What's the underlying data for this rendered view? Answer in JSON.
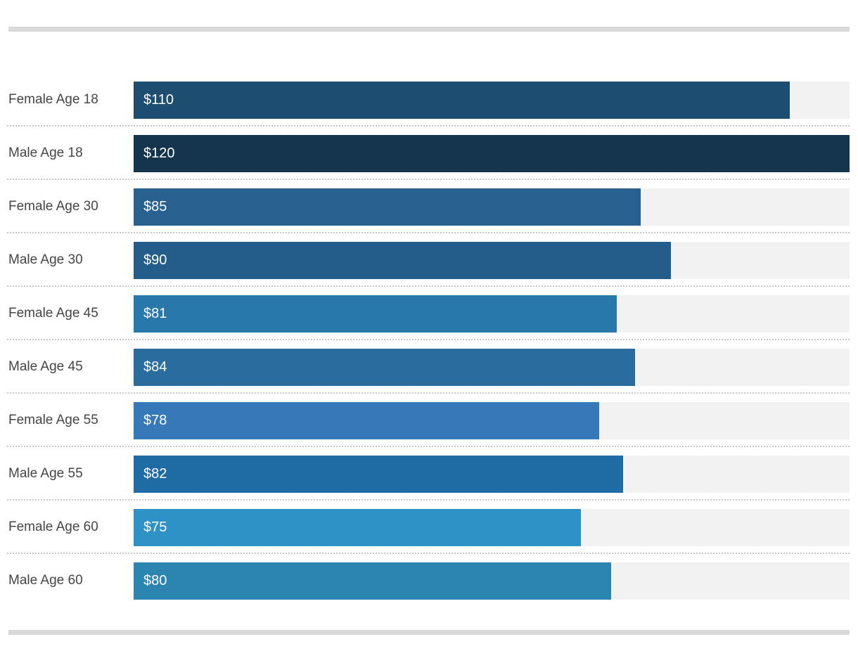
{
  "chart_data": {
    "type": "bar",
    "orientation": "horizontal",
    "title": "",
    "xlabel": "",
    "ylabel": "",
    "xlim": [
      0,
      120
    ],
    "grid": false,
    "legend": false,
    "currency_prefix": "$",
    "track_color": "#f2f2f2",
    "divider_color": "#d9d9d9",
    "categories": [
      "Female Age 18",
      "Male Age 18",
      "Female Age 30",
      "Male Age 30",
      "Female Age 45",
      "Male Age 45",
      "Female Age 55",
      "Male Age 55",
      "Female Age 60",
      "Male Age 60"
    ],
    "values": [
      110,
      120,
      85,
      90,
      81,
      84,
      78,
      82,
      75,
      80
    ],
    "rows": [
      {
        "label": "Female Age 18",
        "value": 110,
        "display": "$110",
        "color": "#1E4D72"
      },
      {
        "label": "Male Age 18",
        "value": 120,
        "display": "$120",
        "color": "#14344E"
      },
      {
        "label": "Female Age 30",
        "value": 85,
        "display": "$85",
        "color": "#28618F"
      },
      {
        "label": "Male Age 30",
        "value": 90,
        "display": "$90",
        "color": "#235C88"
      },
      {
        "label": "Female Age 45",
        "value": 81,
        "display": "$81",
        "color": "#2878A9"
      },
      {
        "label": "Male Age 45",
        "value": 84,
        "display": "$84",
        "color": "#296C9D"
      },
      {
        "label": "Female Age 55",
        "value": 78,
        "display": "$78",
        "color": "#3579B8"
      },
      {
        "label": "Male Age 55",
        "value": 82,
        "display": "$82",
        "color": "#216BA5"
      },
      {
        "label": "Female Age 60",
        "value": 75,
        "display": "$75",
        "color": "#2E92C6"
      },
      {
        "label": "Male Age 60",
        "value": 80,
        "display": "$80",
        "color": "#2C84B0"
      }
    ]
  }
}
